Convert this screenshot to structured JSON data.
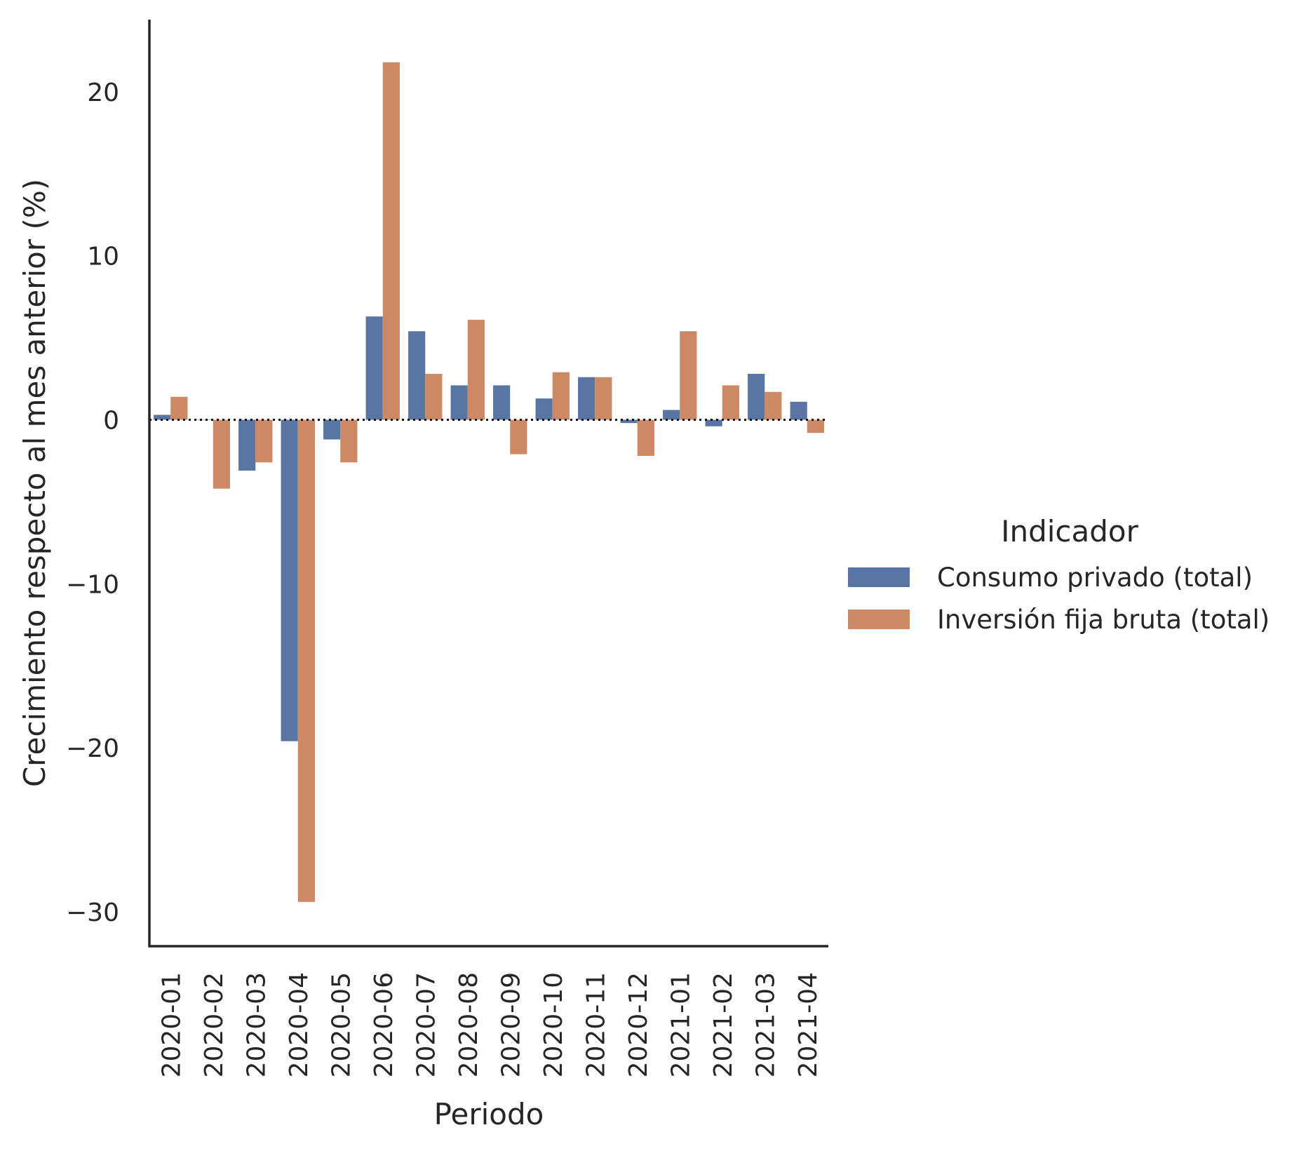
{
  "chart_data": {
    "type": "bar",
    "xlabel": "Periodo",
    "ylabel": "Crecimiento respecto al mes anterior (%)",
    "ylim": [
      -32.1,
      24.4
    ],
    "yticks": [
      -30,
      -20,
      -10,
      0,
      10,
      20
    ],
    "ytick_labels": [
      "−30",
      "−20",
      "−10",
      "0",
      "10",
      "20"
    ],
    "categories": [
      "2020-01",
      "2020-02",
      "2020-03",
      "2020-04",
      "2020-05",
      "2020-06",
      "2020-07",
      "2020-08",
      "2020-09",
      "2020-10",
      "2020-11",
      "2020-12",
      "2021-01",
      "2021-02",
      "2021-03",
      "2021-04"
    ],
    "series": [
      {
        "name": "Consumo privado (total)",
        "color": "#5975a4",
        "values": [
          0.3,
          0.0,
          -3.1,
          -19.6,
          -1.2,
          6.3,
          5.4,
          2.1,
          2.1,
          1.3,
          2.6,
          -0.2,
          0.6,
          -0.4,
          2.8,
          1.1
        ]
      },
      {
        "name": "Inversión fija bruta (total)",
        "color": "#cc8963",
        "values": [
          1.4,
          -4.2,
          -2.6,
          -29.4,
          -2.6,
          21.8,
          2.8,
          6.1,
          -2.1,
          2.9,
          2.6,
          -2.2,
          5.4,
          2.1,
          1.7,
          -0.8
        ]
      }
    ],
    "zero_line": "dotted",
    "grid": false,
    "legend": {
      "title": "Indicador",
      "placement": "center-right outside"
    }
  }
}
